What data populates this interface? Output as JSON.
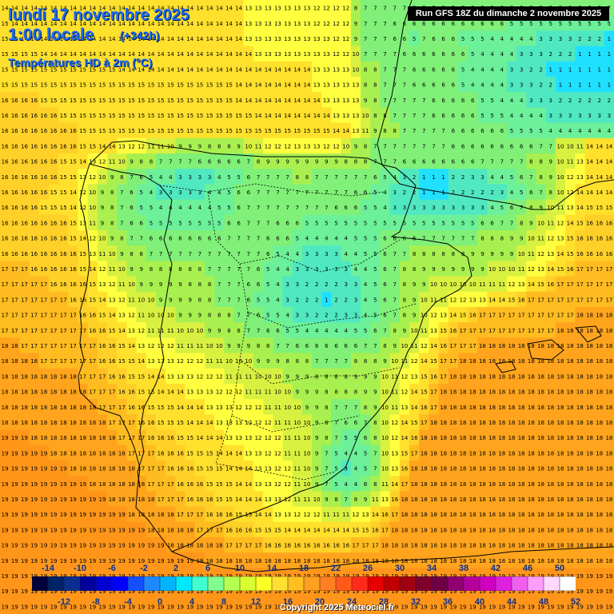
{
  "header": {
    "date": "lundi 17 novembre 2025",
    "hour": "1:00 locale",
    "lead": "(+342h)",
    "parameter": "Températures HD à 2m (°C)"
  },
  "run_label": "Run GFS 18Z du dimanche 2 novembre 2025",
  "copyright": "Copyright 2025 Meteociel.fr",
  "legend": {
    "top_labels": [
      "-14",
      "-10",
      "-6",
      "-2",
      "2",
      "6",
      "10",
      "14",
      "18",
      "22",
      "26",
      "30",
      "34",
      "38",
      "42",
      "46",
      "50"
    ],
    "bottom_labels": [
      "-12",
      "-8",
      "-4",
      "0",
      "4",
      "8",
      "12",
      "16",
      "20",
      "24",
      "28",
      "32",
      "36",
      "40",
      "44",
      "48",
      "52"
    ],
    "colors": [
      "#00003c",
      "#002266",
      "#0a2f8f",
      "#00009a",
      "#0000d2",
      "#0000ff",
      "#1450ff",
      "#1e88ff",
      "#00b4ff",
      "#00e8ff",
      "#40ffd0",
      "#80ff90",
      "#b4ff50",
      "#d8ff30",
      "#ffff28",
      "#ffe030",
      "#ffc020",
      "#ffa020",
      "#ff8020",
      "#ff5a1a",
      "#ff2a1a",
      "#e60000",
      "#c00000",
      "#a00010",
      "#80002c",
      "#700044",
      "#900070",
      "#b4009c",
      "#d000c0",
      "#e020e0",
      "#f060f0",
      "#ff9cff",
      "#ffd8ff",
      "#ffffff"
    ]
  },
  "temperature_grid": [
    "14 14 14 14 14 14 14 14 14 14 14 14 14 14 14 14 14 14 14 14 14 14 14 14 14 13 13 13 13 13 13 13 12 12 12 12 8 7 7 7 7 7 7 7 7 7 7 7 7 7 7 7 7 7 7 7 7 7 7 7 7 7 7",
    "15 14 14 14 14 14 14 14 14 14 14 14 14 14 14 14 14 14 14 14 14 14 14 14 14 13 13 13 13 13 13 13 12 12 12 12 9 7 7 7 6 6 6 6 6 6 6 6 6 6 6 6 5 5 5 5 5 5 5 5 5 5 5",
    "15 15 14 14 14 14 14 14 14 14 14 14 14 14 14 14 14 14 14 14 14 14 14 14 14 13 13 13 13 13 13 13 13 13 12 12 9 7 7 7 6 6 5 7 6 6 6 5 5 5 4 4 4 4 4 3 3 3 3 2 2 2 1",
    "15 15 15 15 14 14 14 14 14 14 14 14 14 14 14 14 14 14 14 14 14 14 14 14 14 14 13 13 13 13 13 13 13 13 12 12 10 7 7 7 7 6 6 6 6 6 6 6 5 4 4 4 4 3 3 3 2 2 2 1 1 1 1",
    "15 15 15 15 15 15 15 15 15 15 15 15 14 14 14 14 14 14 14 14 14 14 14 14 14 14 14 14 14 14 14 14 13 13 13 13 10 8 8 7 7 7 6 6 6 6 6 5 4 4 4 4 3 3 2 2 1 1 1 1 1 1 1",
    "15 15 15 15 15 15 15 15 15 15 15 15 15 15 15 15 15 15 15 15 15 15 15 15 14 14 14 14 14 14 14 14 13 13 13 13 13 8 8 7 7 7 6 6 6 6 6 5 4 4 4 4 3 3 3 2 2 1 1 1 1 1 1",
    "16 16 16 16 15 15 15 15 15 15 15 15 15 15 15 15 15 15 15 15 15 15 15 15 14 14 14 14 14 14 14 14 14 13 13 13 13 9 8 7 7 7 7 7 6 6 6 6 6 5 5 4 4 4 3 3 3 2 2 2 2 2 2",
    "16 16 16 16 16 16 15 15 15 15 15 15 15 15 15 15 15 15 15 15 15 15 15 15 15 15 14 14 14 14 14 14 14 14 13 13 13 10 8 8 7 7 7 7 6 6 6 6 6 5 5 5 4 4 4 4 3 3 3 3 3 3 3",
    "16 16 16 16 16 16 16 16 15 15 15 15 15 15 15 15 15 15 15 15 15 15 15 15 15 15 15 15 15 15 15 15 15 15 14 14 13 11 9 8 8 7 7 7 7 7 6 6 6 6 6 6 5 5 5 5 4 4 4 4 4 4 4",
    "16 16 16 16 16 16 16 16 15 15 14 14 13 12 12 11 11 10 9 9 9 8 8 8 9 10 11 12 12 12 13 13 13 12 12 10 9 8 7 7 7 7 7 7 7 7 6 6 6 6 6 6 6 6 6 7 7 10 10 11 14 14 14",
    "16 16 16 16 16 16 15 15 14 13 12 11 10 9 8 8 7 7 7 7 6 6 6 6 6 7 8 9 9 9 9 9 9 9 9 8 8 8 7 7 7 6 6 6 6 6 6 6 6 7 7 7 7 7 8 8 9 10 11 13 14 14 14",
    "16 16 16 16 16 16 15 15 13 12 10 9 8 7 6 5 4 4 3 3 3 3 4 5 5 6 7 7 7 7 8 8 7 7 7 7 7 7 6 5 4 3 2 1 1 1 2 2 3 3 4 4 5 6 7 8 9 10 12 13 14 14 14",
    "16 16 16 16 16 15 15 14 12 10 9 8 7 6 5 4 3 3 3 3 3 4 4 5 6 6 7 7 7 7 7 7 7 7 7 7 6 6 5 4 3 2 2 1 1 1 2 2 2 2 2 3 4 5 6 7 8 10 12 14 14 14 14",
    "16 16 16 16 15 15 15 14 12 10 9 8 7 6 5 5 4 4 4 4 4 4 5 5 6 7 7 7 7 7 7 7 7 7 6 6 6 5 5 4 3 3 3 3 3 3 3 3 3 3 4 5 6 7 8 9 10 11 13 14 15 15 15",
    "16 16 16 16 16 16 16 15 13 11 9 8 7 6 6 5 5 5 5 5 5 5 5 6 6 7 7 7 6 6 6 5 5 5 5 5 5 5 5 5 5 5 5 5 5 5 5 5 5 6 6 7 7 8 9 10 11 12 14 15 16 16 16",
    "16 16 16 16 16 16 16 15 14 12 10 9 8 7 7 6 6 6 6 6 6 6 6 7 7 7 7 6 6 6 5 4 4 4 4 4 5 5 5 6 6 6 6 7 7 7 7 7 7 8 8 8 9 9 10 11 12 13 15 16 16 16 16",
    "16 16 16 16 16 16 16 16 15 13 11 10 9 8 8 7 7 7 7 7 7 7 7 7 7 7 7 6 5 4 4 3 3 3 3 4 4 5 5 6 7 7 8 8 8 8 8 8 9 9 9 9 9 10 11 12 13 14 15 16 16 16 16",
    "17 17 17 16 16 16 16 16 15 14 12 11 10 9 9 8 8 8 8 8 8 7 7 7 7 7 6 5 4 4 3 3 3 3 3 3 4 4 5 6 7 8 8 9 9 9 9 9 9 9 10 10 10 11 12 13 14 15 16 17 17 17 17",
    "17 17 17 17 17 16 16 16 16 15 13 12 11 10 9 9 9 9 9 8 8 8 7 7 7 6 6 5 4 3 3 2 2 2 2 3 3 4 5 6 7 8 9 9 10 10 10 10 10 11 11 11 12 13 14 15 16 17 17 17 17 17 17",
    "17 17 17 17 17 17 17 16 16 15 14 13 12 11 10 10 9 9 9 9 8 8 7 7 7 6 5 5 4 3 2 2 2 1 2 2 3 4 5 6 7 8 9 10 11 11 12 12 13 13 14 14 15 16 17 17 17 17 17 17 17 17 17",
    "17 17 17 17 17 17 17 17 16 16 15 14 13 12 11 10 10 10 9 9 9 8 8 8 7 7 6 5 5 4 3 3 2 2 2 3 3 4 5 6 7 8 9 10 12 13 14 15 16 17 17 17 17 17 17 17 17 17 17 18 18 18 18",
    "17 17 17 17 17 17 17 17 17 16 16 15 14 13 12 11 11 11 10 10 10 9 9 8 8 7 7 6 6 5 5 4 4 4 4 4 5 5 6 7 8 9 10 11 13 15 16 17 17 17 17 17 17 17 17 17 17 18 18 18 18 18 18",
    "18 18 17 17 17 17 17 17 17 17 16 16 15 14 13 12 12 12 11 11 11 10 10 9 9 9 8 8 7 7 6 6 6 6 6 6 6 7 7 8 9 10 11 12 14 16 17 17 17 18 18 18 18 18 18 18 18 18 18 18 18 18 18",
    "18 18 18 18 17 17 17 17 17 17 16 16 15 15 14 13 13 13 12 12 12 11 11 10 10 10 9 9 9 8 8 8 7 7 7 7 8 8 8 9 10 11 12 14 15 17 17 18 18 18 18 18 18 18 18 18 18 18 18 18 18 18 18",
    "18 18 18 18 18 18 18 18 17 17 17 16 16 15 15 14 14 13 13 13 12 12 12 11 11 11 10 10 10 9 9 9 8 8 8 8 9 9 9 10 11 12 13 15 16 17 18 18 18 18 18 18 18 18 18 18 18 18 18 18 18 18 18",
    "18 18 18 18 18 18 18 18 18 17 17 17 16 16 15 15 14 14 14 13 13 13 12 12 12 11 11 11 10 10 9 9 9 8 8 8 8 9 9 10 11 12 14 15 17 18 18 18 18 18 18 18 18 18 18 18 18 18 18 18 18 18 18",
    "18 18 18 18 18 18 18 18 18 18 17 17 17 16 16 15 15 15 14 14 14 13 13 13 12 12 12 11 11 10 10 9 9 8 7 7 7 8 9 10 11 13 14 16 17 18 18 18 18 18 18 18 18 18 18 18 18 18 18 18 18 18 18",
    "18 18 18 18 18 18 18 18 18 18 18 17 17 17 16 16 15 15 15 14 14 14 13 13 13 12 12 12 11 11 10 10 9 8 7 6 6 7 8 10 12 14 15 17 18 18 18 18 18 18 18 18 18 18 18 18 18 18 18 18 18 18 18",
    "19 19 19 18 18 18 18 18 18 18 18 18 17 17 17 16 16 16 15 15 14 14 14 13 13 13 12 12 12 11 11 10 9 8 7 5 5 6 8 10 12 14 16 18 18 18 18 18 18 18 18 18 18 18 18 18 18 18 18 18 18 18 18",
    "19 19 19 19 19 18 18 18 18 18 18 18 18 17 17 17 16 16 16 15 15 15 14 14 14 13 13 12 12 11 11 10 9 7 5 4 4 5 7 10 13 15 17 18 18 18 18 18 18 18 18 18 18 18 18 18 18 18 18 18 18 18 18",
    "19 19 19 19 19 19 19 18 18 18 18 18 18 18 17 17 17 16 16 16 15 15 15 14 14 14 13 13 12 12 11 10 9 7 5 3 4 5 7 10 13 16 18 18 18 18 18 18 18 18 18 18 18 18 18 18 18 18 18 18 18 18 18",
    "19 19 19 19 19 19 19 19 19 18 18 18 18 18 18 17 17 17 16 16 16 15 15 15 14 14 13 13 12 12 11 10 9 7 5 4 4 6 8 11 14 17 18 18 18 18 18 18 18 18 18 18 18 18 18 18 18 18 18 18 18 18 18",
    "19 19 19 19 19 19 19 19 19 19 19 18 18 18 18 18 17 17 17 16 16 16 15 15 14 14 14 13 13 12 11 11 10 9 8 7 8 9 11 13 16 18 18 18 18 18 18 18 18 18 18 18 18 18 18 18 18 18 18 18 18 18 18",
    "19 19 19 19 19 19 19 19 19 19 19 19 19 18 18 18 18 18 17 17 17 16 16 16 15 15 14 14 13 13 12 12 12 11 11 11 12 13 14 16 17 18 18 18 18 18 18 18 18 18 18 18 18 18 18 18 18 18 18 18 18 18 18",
    "19 19 19 19 19 19 19 19 19 19 19 19 19 19 19 18 18 18 18 18 17 17 17 16 16 16 15 15 15 14 14 14 14 14 14 14 15 15 16 17 18 18 18 18 18 18 18 18 18 18 18 18 18 18 18 18 18 18 18 18 18 18 18",
    "19 19 19 19 19 19 19 19 19 19 19 19 19 19 19 19 19 18 18 18 18 18 18 17 17 17 17 16 16 16 16 16 16 16 16 16 17 17 17 18 18 18 18 18 18 18 18 18 18 18 18 18 18 18 18 18 18 18 18 18 18 18 18",
    "19 19 19 19 19 19 19 19 19 19 19 19 19 19 19 19 19 19 19 19 19 18 18 18 18 18 18 18 18 18 18 18 18 18 18 18 18 18 18 18 18 18 18 18 18 18 18 18 18 18 18 18 18 18 18 18 18 18 18 18 18 18 18",
    "19 19 19 19 19 19 19 19 19 19 19 19 19 19 19 19 19 19 19 19 19 19 19 19 19 19 19 19 19 19 19 19 19 19 19 19 19 19 19 19 19 19 19 19 19 19 19 19 19 19 19 19 19 19 19 19 19 19 19 19 19 19 19",
    "19 19 19 19 19 19 19 19 19 19 19 19 19 19 19 19 19 19 19 19 19 19 19 19 19 19 19 19 19 19 19 19 19 19 19 19 19 19 19 19 19 19 19 19 19 19 19 19 19 19 19 19 19 19 19 19 19 19 19 19 19 19 19",
    "19 19 19 19 19 19 19 19 19 19 19 19 19 19 19 19 19 19 19 19 19 19 19 19 19 19 19 19 19 19 19 19 19 19 19 19 19 19 19 19 19 19 19 19 19 19 19 19 19 19 19 19 19 19 19 19 19 19 19 19 19 19 19"
  ]
}
